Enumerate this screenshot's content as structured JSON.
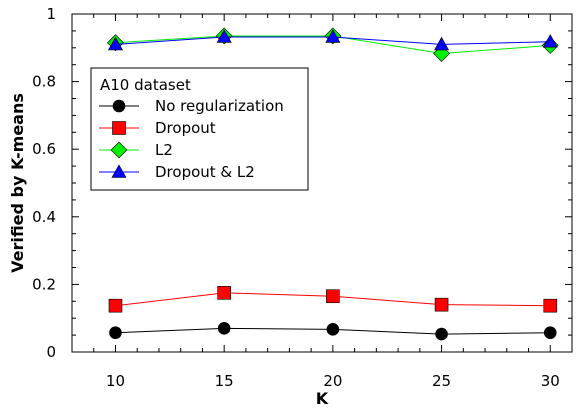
{
  "chart_data": {
    "type": "line",
    "title": "",
    "xlabel": "K",
    "ylabel": "Verified by K-means",
    "x": [
      10,
      15,
      20,
      25,
      30
    ],
    "xlim": [
      8,
      31
    ],
    "ylim": [
      0,
      1
    ],
    "x_ticks": [
      "10",
      "15",
      "20",
      "25",
      "30"
    ],
    "y_ticks": [
      "0",
      "0.2",
      "0.4",
      "0.6",
      "0.8",
      "1"
    ],
    "legend_title": "A10 dataset",
    "legend_position": "left-upper",
    "grid": false,
    "series": [
      {
        "name": "No regularization",
        "color": "#000000",
        "marker": "circle",
        "values": [
          0.057,
          0.07,
          0.067,
          0.053,
          0.057
        ]
      },
      {
        "name": "Dropout",
        "color": "#ff0000",
        "marker": "square",
        "values": [
          0.137,
          0.175,
          0.165,
          0.14,
          0.137
        ]
      },
      {
        "name": "L2",
        "color": "#00ee00",
        "marker": "diamond",
        "values": [
          0.915,
          0.935,
          0.935,
          0.883,
          0.907
        ]
      },
      {
        "name": "Dropout & L2",
        "color": "#0000ff",
        "marker": "triangle",
        "values": [
          0.91,
          0.932,
          0.932,
          0.91,
          0.918
        ]
      }
    ]
  }
}
